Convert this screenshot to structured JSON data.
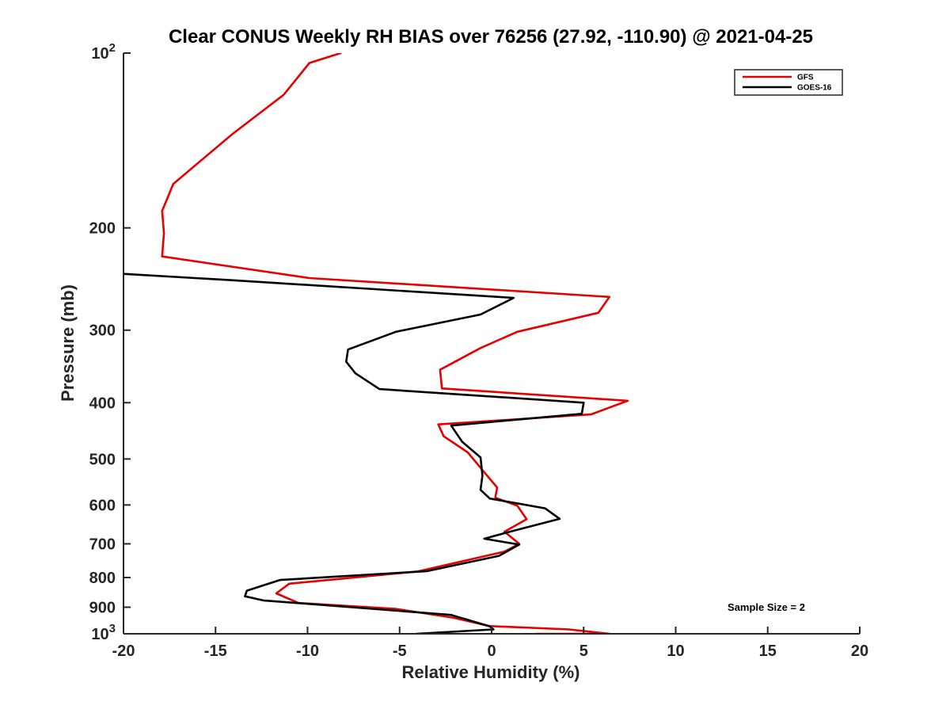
{
  "chart_data": {
    "type": "line",
    "title": "Clear CONUS Weekly RH BIAS over 76256 (27.92, -110.90) @ 2021-04-25",
    "xlabel": "Relative Humidity (%)",
    "ylabel": "Pressure (mb)",
    "xlim": [
      -20,
      20
    ],
    "ylim": [
      1000,
      100
    ],
    "y_scale": "log",
    "y_reversed": true,
    "grid": false,
    "legend_position": "top-right",
    "x_ticks": [
      -20,
      -15,
      -10,
      -5,
      0,
      5,
      10,
      15,
      20
    ],
    "x_tick_labels": [
      "-20",
      "-15",
      "-10",
      "-5",
      "0",
      "5",
      "10",
      "15",
      "20"
    ],
    "y_ticks": [
      100,
      200,
      300,
      400,
      500,
      600,
      700,
      800,
      900,
      1000
    ],
    "y_tick_labels": [
      {
        "base": "10",
        "exp": "2"
      },
      {
        "base": "200"
      },
      {
        "base": "300"
      },
      {
        "base": "400"
      },
      {
        "base": "500"
      },
      {
        "base": "600"
      },
      {
        "base": "700"
      },
      {
        "base": "800"
      },
      {
        "base": "900"
      },
      {
        "base": "10",
        "exp": "3"
      }
    ],
    "annotation": "Sample Size = 2",
    "series": [
      {
        "name": "GFS",
        "color": "#e60000",
        "points": [
          [
            -8.2,
            100
          ],
          [
            -9.9,
            104
          ],
          [
            -11.3,
            118
          ],
          [
            -14.1,
            138
          ],
          [
            -17.3,
            168
          ],
          [
            -17.9,
            187
          ],
          [
            -17.8,
            204
          ],
          [
            -17.9,
            224
          ],
          [
            -9.9,
            244
          ],
          [
            6.4,
            263
          ],
          [
            5.8,
            280
          ],
          [
            1.4,
            302
          ],
          [
            -0.6,
            322
          ],
          [
            -2.8,
            351
          ],
          [
            -2.7,
            378
          ],
          [
            7.4,
            397
          ],
          [
            5.4,
            419
          ],
          [
            -2.9,
            436
          ],
          [
            -2.6,
            457
          ],
          [
            -1.3,
            487
          ],
          [
            -0.4,
            527
          ],
          [
            0.3,
            560
          ],
          [
            0.2,
            583
          ],
          [
            1.4,
            602
          ],
          [
            1.9,
            635
          ],
          [
            0.7,
            667
          ],
          [
            1.5,
            700
          ],
          [
            0.7,
            722
          ],
          [
            -4.0,
            781
          ],
          [
            -11.0,
            820
          ],
          [
            -11.7,
            852
          ],
          [
            -10.5,
            885
          ],
          [
            -5.2,
            906
          ],
          [
            -2.1,
            938
          ],
          [
            -0.1,
            970
          ],
          [
            4.2,
            983
          ],
          [
            6.4,
            1000
          ],
          [
            2.4,
            1000
          ]
        ]
      },
      {
        "name": "GOES-16",
        "color": "#000000",
        "points": [
          [
            -20.0,
            240
          ],
          [
            -14.2,
            246
          ],
          [
            1.2,
            264
          ],
          [
            -0.6,
            282
          ],
          [
            -5.2,
            302
          ],
          [
            -7.8,
            324
          ],
          [
            -7.9,
            340
          ],
          [
            -7.4,
            356
          ],
          [
            -6.1,
            379
          ],
          [
            5.0,
            400
          ],
          [
            4.9,
            418
          ],
          [
            -2.2,
            438
          ],
          [
            -1.6,
            467
          ],
          [
            -0.6,
            497
          ],
          [
            -0.5,
            534
          ],
          [
            -0.6,
            565
          ],
          [
            -0.1,
            585
          ],
          [
            2.9,
            608
          ],
          [
            3.7,
            634
          ],
          [
            1.0,
            667
          ],
          [
            -0.4,
            686
          ],
          [
            1.5,
            702
          ],
          [
            0.4,
            734
          ],
          [
            -3.5,
            780
          ],
          [
            -11.5,
            808
          ],
          [
            -13.3,
            843
          ],
          [
            -13.4,
            862
          ],
          [
            -12.4,
            876
          ],
          [
            -2.2,
            928
          ],
          [
            -0.1,
            971
          ],
          [
            0.1,
            983
          ],
          [
            -4.1,
            1000
          ]
        ]
      }
    ]
  }
}
